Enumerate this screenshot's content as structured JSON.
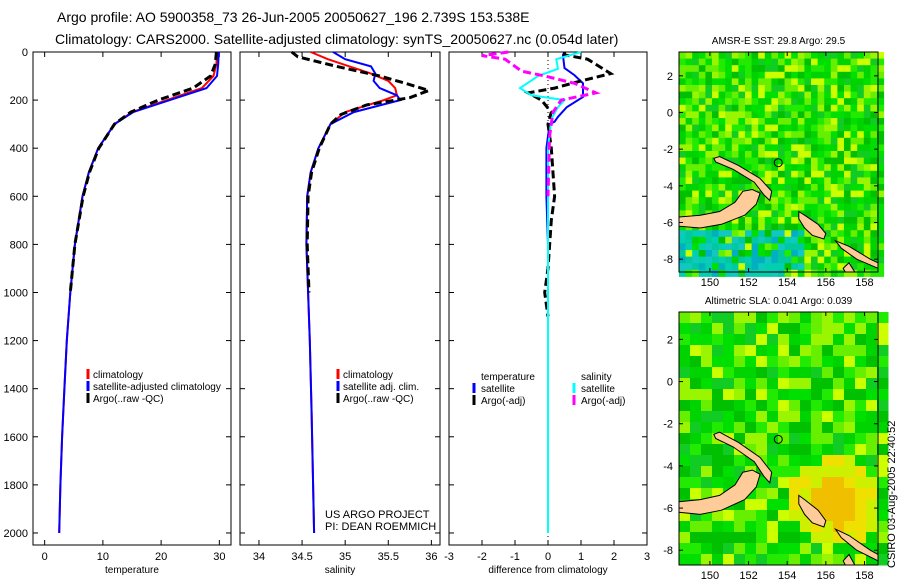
{
  "header": {
    "title_line1": "Argo profile: AO 5900358_73 26-Jun-2005 20050627_196 2.739S 153.538E",
    "title_line2": "Climatology: CARS2000. Satellite-adjusted climatology: synTS_20050627.nc (0.054d later)"
  },
  "project": {
    "line1": "US ARGO PROJECT",
    "line2": "PI: DEAN ROEMMICH"
  },
  "footer_stamp": "CSIRO 03-Aug-2005 22:40:52",
  "chart_data": [
    {
      "type": "line",
      "xlabel": "temperature",
      "ylabel": "",
      "xlim": [
        -2,
        32
      ],
      "ylim": [
        2050,
        0
      ],
      "xticks": [
        "0",
        "10",
        "20",
        "30"
      ],
      "xtick_values": [
        0,
        10,
        20,
        30
      ],
      "yticks": [
        "0",
        "200",
        "400",
        "600",
        "800",
        "1000",
        "1200",
        "1400",
        "1600",
        "1800",
        "2000"
      ],
      "ytick_values": [
        0,
        200,
        400,
        600,
        800,
        1000,
        1200,
        1400,
        1600,
        1800,
        2000
      ],
      "legend": [
        "climatology",
        "satellite-adjusted climatology",
        "Argo(..raw -QC)"
      ],
      "series": [
        {
          "name": "climatology",
          "color": "#ff0000",
          "dash": "",
          "depth": [
            0,
            50,
            100,
            150,
            200,
            250,
            300,
            400,
            500,
            600,
            800,
            1000,
            1200,
            1400,
            1600,
            1800,
            2000
          ],
          "values": [
            29.6,
            29.5,
            29.0,
            27.0,
            21.0,
            15.0,
            12.0,
            9.2,
            7.6,
            6.5,
            5.2,
            4.4,
            3.8,
            3.4,
            3.0,
            2.7,
            2.5
          ]
        },
        {
          "name": "satellite-adjusted climatology",
          "color": "#0000ff",
          "dash": "",
          "depth": [
            0,
            50,
            100,
            150,
            200,
            250,
            300,
            400,
            500,
            600,
            800,
            1000,
            1200,
            1400,
            1600,
            1800,
            2000
          ],
          "values": [
            29.9,
            29.8,
            29.6,
            27.8,
            21.5,
            15.2,
            12.0,
            9.2,
            7.6,
            6.5,
            5.2,
            4.4,
            3.8,
            3.4,
            3.0,
            2.7,
            2.5
          ]
        },
        {
          "name": "Argo(..raw -QC)",
          "color": "#000000",
          "dash": "8,4",
          "depth": [
            0,
            50,
            100,
            150,
            200,
            250,
            300,
            400,
            500,
            600,
            800,
            1000
          ],
          "values": [
            29.5,
            29.3,
            28.5,
            25.5,
            19.5,
            14.8,
            12.0,
            9.3,
            7.7,
            6.6,
            5.2,
            4.4
          ]
        }
      ]
    },
    {
      "type": "line",
      "xlabel": "salinity",
      "ylabel": "",
      "xlim": [
        33.78,
        36.1
      ],
      "ylim": [
        2050,
        0
      ],
      "xticks": [
        "34",
        "34.5",
        "35",
        "35.5",
        "36"
      ],
      "xtick_values": [
        34,
        34.5,
        35,
        35.5,
        36
      ],
      "legend": [
        "climatology",
        "satellite adj. clim.",
        "Argo(..raw -QC)"
      ],
      "series": [
        {
          "name": "climatology",
          "color": "#ff0000",
          "dash": "",
          "depth": [
            0,
            30,
            60,
            90,
            120,
            150,
            180,
            200,
            250,
            300,
            400,
            500,
            600,
            800,
            1000,
            1200,
            1500,
            2000
          ],
          "values": [
            34.6,
            34.8,
            35.05,
            35.3,
            35.5,
            35.58,
            35.6,
            35.45,
            35.0,
            34.83,
            34.69,
            34.6,
            34.56,
            34.55,
            34.57,
            34.59,
            34.61,
            34.64
          ]
        },
        {
          "name": "satellite adj. clim.",
          "color": "#0000ff",
          "dash": "",
          "depth": [
            0,
            30,
            60,
            90,
            120,
            150,
            180,
            200,
            250,
            300,
            400,
            500,
            600,
            800,
            1000,
            1200,
            1500,
            2000
          ],
          "values": [
            34.86,
            35.0,
            35.3,
            35.35,
            35.33,
            35.4,
            35.6,
            35.64,
            35.1,
            34.83,
            34.69,
            34.6,
            34.56,
            34.55,
            34.57,
            34.59,
            34.61,
            34.64
          ]
        },
        {
          "name": "Argo(..raw -QC)",
          "color": "#000000",
          "dash": "8,4",
          "depth": [
            0,
            20,
            60,
            100,
            130,
            160,
            190,
            220,
            260,
            300,
            400,
            500,
            600,
            800,
            1000
          ],
          "values": [
            34.38,
            34.45,
            34.9,
            35.4,
            35.7,
            35.97,
            35.75,
            35.25,
            34.95,
            34.83,
            34.7,
            34.61,
            34.57,
            34.56,
            34.58
          ]
        }
      ]
    },
    {
      "type": "line",
      "xlabel": "difference from climatology",
      "ylabel": "",
      "xlim": [
        -3,
        3
      ],
      "ylim": [
        2050,
        0
      ],
      "xticks": [
        "-3",
        "-2",
        "-1",
        "0",
        "1",
        "2",
        "3"
      ],
      "xtick_values": [
        -3,
        -2,
        -1,
        0,
        1,
        2,
        3
      ],
      "legend_temperature": [
        "temperature",
        "satellite",
        "Argo(-adj)"
      ],
      "legend_salinity": [
        "salinity",
        "satellite",
        "Argo(-adj)"
      ],
      "series": [
        {
          "name": "temperature satellite",
          "color": "#0000ff",
          "dash": "",
          "depth": [
            0,
            12,
            67,
            96,
            130,
            187,
            229,
            270,
            290,
            300,
            400,
            600,
            800,
            2000
          ],
          "values": [
            0.5,
            0.45,
            0.5,
            0.8,
            1.06,
            1.06,
            0.57,
            0.3,
            0.2,
            0.05,
            -0.05,
            -0.05,
            0,
            0
          ]
        },
        {
          "name": "temperature Argo(-adj)",
          "color": "#000000",
          "dash": "8,4",
          "depth": [
            0,
            12,
            30,
            90,
            120,
            150,
            170,
            200,
            250,
            300,
            400,
            600,
            700,
            900,
            1000,
            1100
          ],
          "values": [
            0.5,
            0.5,
            1.2,
            1.9,
            1.0,
            0.2,
            -0.6,
            -0.2,
            0.1,
            0,
            0.1,
            0.2,
            0.1,
            0,
            -0.1,
            0
          ]
        },
        {
          "name": "salinity satellite",
          "color": "#00ffff",
          "dash": "",
          "depth": [
            0,
            30,
            70,
            100,
            150,
            180,
            200,
            230,
            280,
            400,
            2000
          ],
          "values": [
            1.0,
            0.25,
            0.3,
            -0.3,
            -0.85,
            -0.5,
            0.5,
            0.3,
            0.1,
            0,
            0
          ]
        },
        {
          "name": "salinity Argo(-adj)",
          "color": "#ff00ff",
          "dash": "8,4",
          "depth": [
            0,
            15,
            30,
            80,
            100,
            130,
            170,
            200,
            250,
            350,
            600
          ],
          "values": [
            -1.2,
            -2.0,
            -1.3,
            -0.8,
            -0.1,
            0.8,
            1.45,
            0.4,
            0.15,
            0.05,
            0
          ]
        }
      ]
    },
    {
      "type": "heatmap",
      "title": "AMSR-E SST: 29.8 Argo: 29.5",
      "xlim": [
        148.4,
        158.7
      ],
      "ylim": [
        -8.7,
        3.3
      ],
      "xticks": [
        "150",
        "152",
        "154",
        "156",
        "158"
      ],
      "xtick_values": [
        150,
        152,
        154,
        156,
        158
      ],
      "yticks": [
        "2",
        "0",
        "-2",
        "-4",
        "-6",
        "-8"
      ],
      "ytick_values": [
        2,
        0,
        -2,
        -4,
        -6,
        -8
      ],
      "float_position": [
        153.538,
        -2.739
      ]
    },
    {
      "type": "heatmap",
      "title": "Altimetric SLA: 0.041 Argo: 0.039",
      "xlim": [
        148.4,
        158.7
      ],
      "ylim": [
        -8.7,
        3.3
      ],
      "xticks": [
        "150",
        "152",
        "154",
        "156",
        "158"
      ],
      "xtick_values": [
        150,
        152,
        154,
        156,
        158
      ],
      "yticks": [
        "2",
        "0",
        "-2",
        "-4",
        "-6",
        "-8"
      ],
      "ytick_values": [
        2,
        0,
        -2,
        -4,
        -6,
        -8
      ],
      "float_position": [
        153.538,
        -2.739
      ]
    }
  ]
}
